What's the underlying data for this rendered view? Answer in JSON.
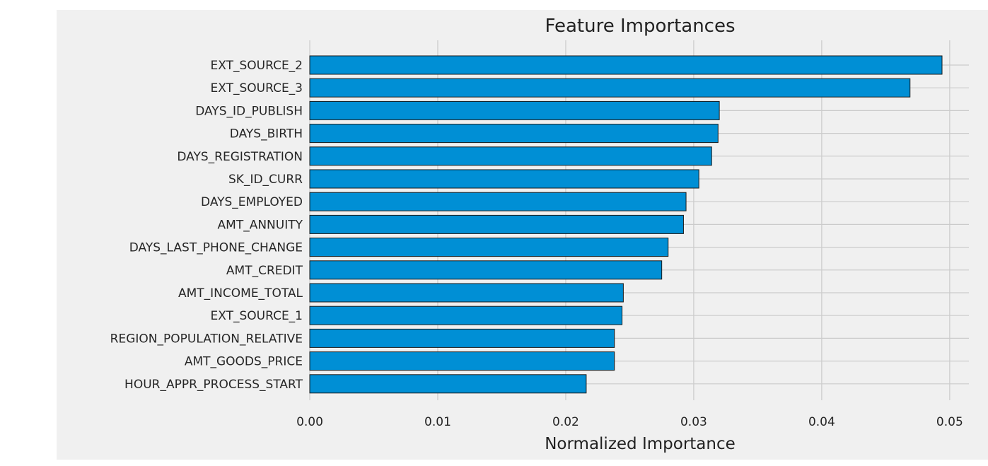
{
  "chart_data": {
    "type": "bar",
    "orientation": "horizontal",
    "title": "Feature Importances",
    "xlabel": "Normalized Importance",
    "ylabel": "",
    "xlim": [
      0,
      0.0515
    ],
    "xticks": [
      "0.00",
      "0.01",
      "0.02",
      "0.03",
      "0.04",
      "0.05"
    ],
    "grid": true,
    "categories": [
      "EXT_SOURCE_2",
      "EXT_SOURCE_3",
      "DAYS_ID_PUBLISH",
      "DAYS_BIRTH",
      "DAYS_REGISTRATION",
      "SK_ID_CURR",
      "DAYS_EMPLOYED",
      "AMT_ANNUITY",
      "DAYS_LAST_PHONE_CHANGE",
      "AMT_CREDIT",
      "AMT_INCOME_TOTAL",
      "EXT_SOURCE_1",
      "REGION_POPULATION_RELATIVE",
      "AMT_GOODS_PRICE",
      "HOUR_APPR_PROCESS_START"
    ],
    "values": [
      0.0494,
      0.0469,
      0.032,
      0.0319,
      0.0314,
      0.0304,
      0.0294,
      0.0292,
      0.028,
      0.0275,
      0.0245,
      0.0244,
      0.0238,
      0.0238,
      0.0216
    ],
    "colors": {
      "figure_background": "#f0f0f0",
      "bar_fill": "#008fd5",
      "bar_edge": "#1a1a1a",
      "grid": "#cbcbcb"
    }
  }
}
